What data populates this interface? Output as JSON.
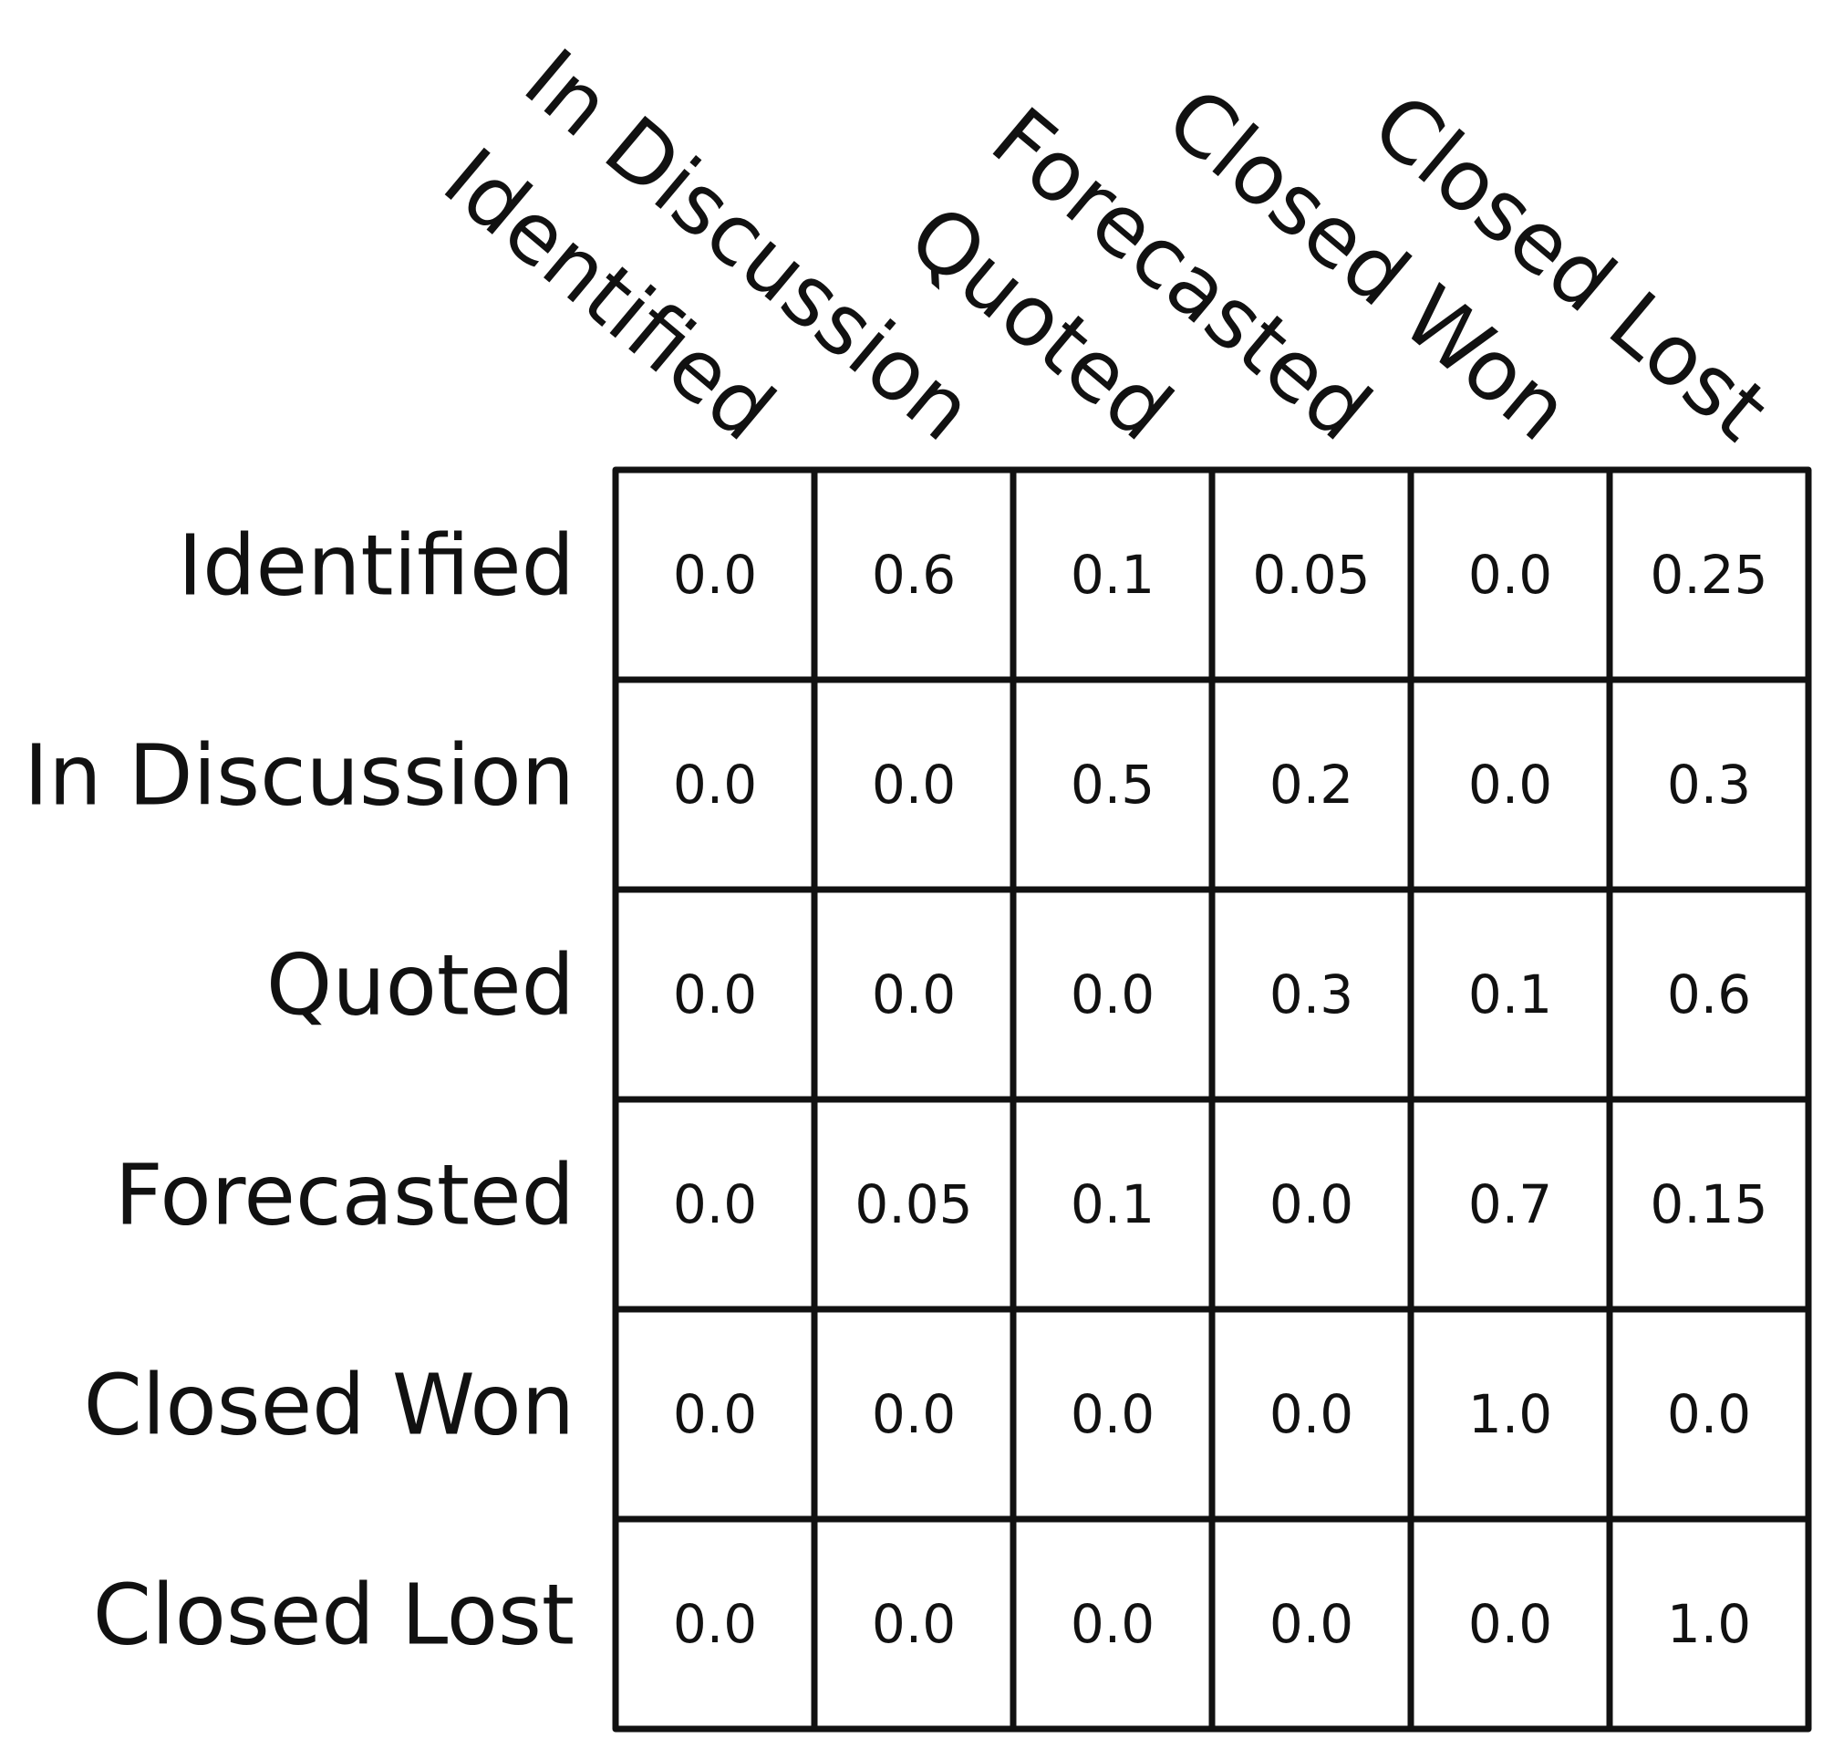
{
  "chart_data": {
    "type": "heatmap",
    "title": "",
    "xlabel": "",
    "ylabel": "",
    "rows": [
      "Identified",
      "In Discussion",
      "Quoted",
      "Forecasted",
      "Closed Won",
      "Closed Lost"
    ],
    "columns": [
      "Identified",
      "In Discussion",
      "Quoted",
      "Forecasted",
      "Closed Won",
      "Closed Lost"
    ],
    "values": [
      [
        0.0,
        0.6,
        0.1,
        0.05,
        0.0,
        0.25
      ],
      [
        0.0,
        0.0,
        0.5,
        0.2,
        0.0,
        0.3
      ],
      [
        0.0,
        0.0,
        0.0,
        0.3,
        0.1,
        0.6
      ],
      [
        0.0,
        0.05,
        0.1,
        0.0,
        0.7,
        0.15
      ],
      [
        0.0,
        0.0,
        0.0,
        0.0,
        1.0,
        0.0
      ],
      [
        0.0,
        0.0,
        0.0,
        0.0,
        0.0,
        1.0
      ]
    ],
    "value_labels": [
      [
        "0.0",
        "0.6",
        "0.1",
        "0.05",
        "0.0",
        "0.25"
      ],
      [
        "0.0",
        "0.0",
        "0.5",
        "0.2",
        "0.0",
        "0.3"
      ],
      [
        "0.0",
        "0.0",
        "0.0",
        "0.3",
        "0.1",
        "0.6"
      ],
      [
        "0.0",
        "0.05",
        "0.1",
        "0.0",
        "0.7",
        "0.15"
      ],
      [
        "0.0",
        "0.0",
        "0.0",
        "0.0",
        "1.0",
        "0.0"
      ],
      [
        "0.0",
        "0.0",
        "0.0",
        "0.0",
        "0.0",
        "1.0"
      ]
    ],
    "grid": true,
    "colorscale": "none",
    "column_labels_rotated": true
  }
}
